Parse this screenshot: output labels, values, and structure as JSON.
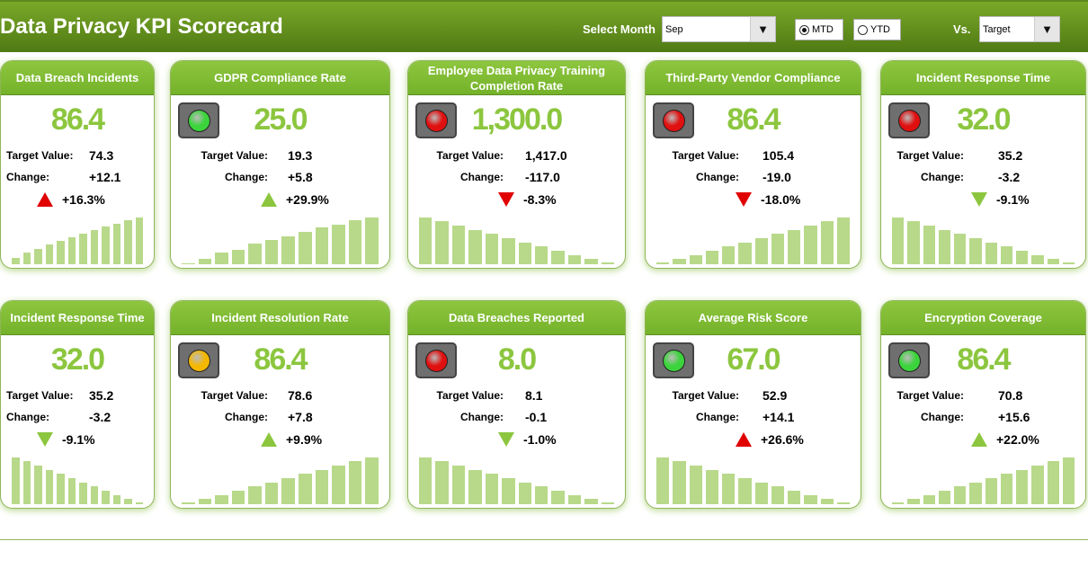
{
  "header": {
    "title": "Data Privacy KPI Scorecard",
    "month_label": "Select Month",
    "month_value": "Sep",
    "mtd": "MTD",
    "ytd": "YTD",
    "mode_selected": "MTD",
    "vs_label": "Vs.",
    "vs_value": "Target"
  },
  "labels": {
    "target": "Target Value:",
    "change": "Change:"
  },
  "colors": {
    "green": "#3cd43c",
    "red": "#e01010",
    "yellow": "#f5b800",
    "arrow_green": "#8cc63f",
    "arrow_red": "#e00000"
  },
  "cards": [
    {
      "title": "Data Breach Incidents",
      "value": "86.4",
      "target": "74.3",
      "change": "+12.1",
      "pct": "+16.3%",
      "dir": "up",
      "arrow": "red",
      "light": null,
      "bars": [
        12,
        22,
        30,
        38,
        44,
        52,
        58,
        66,
        72,
        78,
        84,
        90
      ]
    },
    {
      "title": "GDPR Compliance Rate",
      "value": "25.0",
      "target": "19.3",
      "change": "+5.8",
      "pct": "+29.9%",
      "dir": "up",
      "arrow": "green",
      "light": "green",
      "bars": [
        2,
        10,
        22,
        28,
        40,
        46,
        54,
        62,
        70,
        76,
        84,
        90
      ]
    },
    {
      "title": "Employee Data Privacy Training Completion Rate",
      "value": "1,300.0",
      "target": "1,417.0",
      "change": "-117.0",
      "pct": "-8.3%",
      "dir": "down",
      "arrow": "red",
      "light": "red",
      "bars": [
        90,
        82,
        74,
        66,
        58,
        50,
        42,
        34,
        26,
        18,
        10,
        3
      ]
    },
    {
      "title": "Third-Party Vendor Compliance",
      "value": "86.4",
      "target": "105.4",
      "change": "-19.0",
      "pct": "-18.0%",
      "dir": "down",
      "arrow": "red",
      "light": "red",
      "bars": [
        3,
        10,
        18,
        26,
        34,
        42,
        50,
        58,
        66,
        74,
        82,
        90
      ]
    },
    {
      "title": "Incident Response Time",
      "value": "32.0",
      "target": "35.2",
      "change": "-3.2",
      "pct": "-9.1%",
      "dir": "down",
      "arrow": "green",
      "light": "red",
      "bars": [
        90,
        82,
        74,
        66,
        58,
        50,
        42,
        34,
        26,
        18,
        10,
        3
      ]
    },
    {
      "title": "Incident Response Time",
      "value": "32.0",
      "target": "35.2",
      "change": "-3.2",
      "pct": "-9.1%",
      "dir": "down",
      "arrow": "green",
      "light": null,
      "bars": [
        90,
        82,
        74,
        66,
        58,
        50,
        42,
        34,
        26,
        18,
        10,
        3
      ]
    },
    {
      "title": "Incident Resolution Rate",
      "value": "86.4",
      "target": "78.6",
      "change": "+7.8",
      "pct": "+9.9%",
      "dir": "up",
      "arrow": "green",
      "light": "yellow",
      "bars": [
        3,
        10,
        18,
        26,
        34,
        42,
        50,
        58,
        66,
        74,
        82,
        90
      ]
    },
    {
      "title": "Data Breaches Reported",
      "value": "8.0",
      "target": "8.1",
      "change": "-0.1",
      "pct": "-1.0%",
      "dir": "down",
      "arrow": "green",
      "light": "red",
      "bars": [
        90,
        82,
        74,
        66,
        58,
        50,
        42,
        34,
        26,
        18,
        10,
        3
      ]
    },
    {
      "title": "Average Risk Score",
      "value": "67.0",
      "target": "52.9",
      "change": "+14.1",
      "pct": "+26.6%",
      "dir": "up",
      "arrow": "red",
      "light": "green",
      "bars": [
        90,
        82,
        74,
        66,
        58,
        50,
        42,
        34,
        26,
        18,
        10,
        3
      ]
    },
    {
      "title": "Encryption Coverage",
      "value": "86.4",
      "target": "70.8",
      "change": "+15.6",
      "pct": "+22.0%",
      "dir": "up",
      "arrow": "green",
      "light": "green",
      "bars": [
        3,
        10,
        18,
        26,
        34,
        42,
        50,
        58,
        66,
        74,
        82,
        90
      ]
    }
  ]
}
